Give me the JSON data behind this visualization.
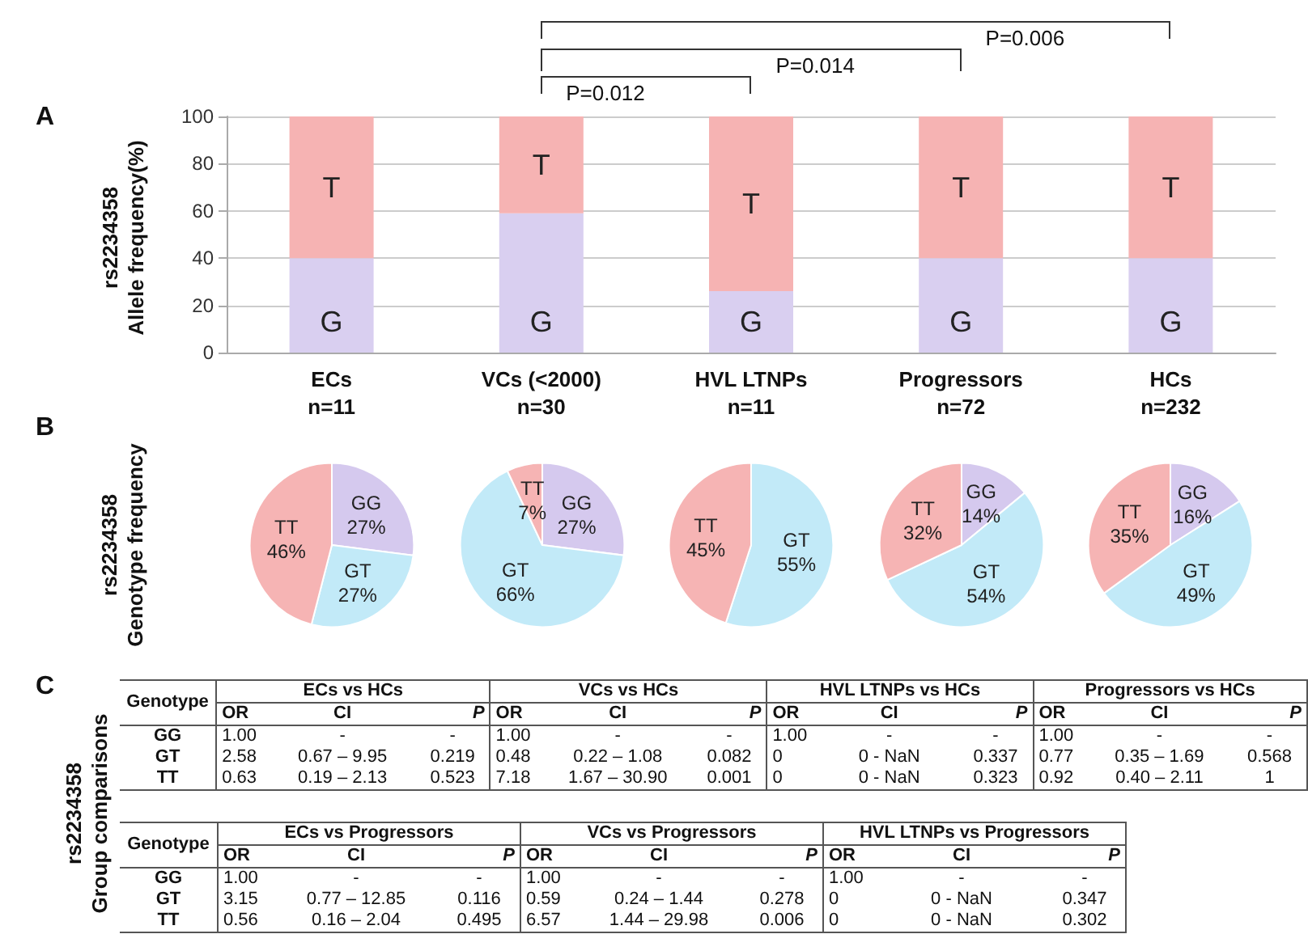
{
  "chart_data": [
    {
      "type": "bar",
      "stacked": true,
      "ylabel": "rs2234358\nAllele frequency(%)",
      "categories": [
        "ECs\nn=11",
        "VCs (<2000)\nn=30",
        "HVL LTNPs\nn=11",
        "Progressors\nn=72",
        "HCs\nn=232"
      ],
      "series": [
        {
          "name": "G",
          "color": "#d9cff0",
          "values": [
            40,
            59,
            26,
            40,
            40
          ]
        },
        {
          "name": "T",
          "color": "#f6b3b3",
          "values": [
            60,
            41,
            74,
            60,
            60
          ]
        }
      ],
      "ylim": [
        0,
        100
      ],
      "yticks": [
        0,
        20,
        40,
        60,
        80,
        100
      ],
      "grid": "y",
      "legend": false,
      "annotations": [
        "A",
        "P=0.012",
        "P=0.014",
        "P=0.006"
      ]
    },
    {
      "type": "pie",
      "ylabel": "rs2234358\nGenotype frequency",
      "annotations": [
        "B"
      ],
      "categories": [
        "GG",
        "GT",
        "TT"
      ],
      "values": [
        27,
        27,
        46
      ],
      "value_labels": [
        "27%",
        "27%",
        "46%"
      ],
      "colors": [
        "#d5c9ee",
        "#c2eaf8",
        "#f6b4b4"
      ]
    },
    {
      "type": "pie",
      "categories": [
        "GG",
        "GT",
        "TT"
      ],
      "values": [
        27,
        66,
        7
      ],
      "value_labels": [
        "27%",
        "66%",
        "7%"
      ],
      "colors": [
        "#d5c9ee",
        "#c2eaf8",
        "#f6b4b4"
      ]
    },
    {
      "type": "pie",
      "categories": [
        "GT",
        "TT"
      ],
      "values": [
        55,
        45
      ],
      "value_labels": [
        "55%",
        "45%"
      ],
      "colors": [
        "#c2eaf8",
        "#f6b4b4"
      ]
    },
    {
      "type": "pie",
      "categories": [
        "GG",
        "GT",
        "TT"
      ],
      "values": [
        14,
        54,
        32
      ],
      "value_labels": [
        "14%",
        "54%",
        "32%"
      ],
      "colors": [
        "#d5c9ee",
        "#c2eaf8",
        "#f6b4b4"
      ]
    },
    {
      "type": "pie",
      "categories": [
        "GG",
        "GT",
        "TT"
      ],
      "values": [
        16,
        49,
        35
      ],
      "value_labels": [
        "16%",
        "49%",
        "35%"
      ],
      "colors": [
        "#d5c9ee",
        "#c2eaf8",
        "#f6b4b4"
      ]
    },
    {
      "type": "other",
      "ylabel": "rs2234358\nGroup comparisons",
      "annotations": [
        "C",
        "Genotype",
        "OR",
        "CI",
        "P"
      ],
      "categories": [
        "ECs vs HCs",
        "VCs vs HCs",
        "HVL LTNPs vs HCs",
        "Progressors vs HCs"
      ],
      "y_categories": [
        "GG",
        "GT",
        "TT"
      ],
      "cell_labels": [
        [
          "1.00",
          "-",
          "-",
          "1.00",
          "-",
          "-",
          "1.00",
          "-",
          "-",
          "1.00",
          "-",
          "-"
        ],
        [
          "2.58",
          "0.67 – 9.95",
          "0.219",
          "0.48",
          "0.22 – 1.08",
          "0.082",
          "0",
          "0 - NaN",
          "0.337",
          "0.77",
          "0.35 – 1.69",
          "0.568"
        ],
        [
          "0.63",
          "0.19 – 2.13",
          "0.523",
          "7.18",
          "1.67 – 30.90",
          "0.001",
          "0",
          "0 - NaN",
          "0.323",
          "0.92",
          "0.40 – 2.11",
          "1"
        ]
      ]
    },
    {
      "type": "other",
      "annotations": [
        "Genotype",
        "OR",
        "CI",
        "P"
      ],
      "categories": [
        "ECs vs Progressors",
        "VCs vs Progressors",
        "HVL LTNPs vs Progressors"
      ],
      "y_categories": [
        "GG",
        "GT",
        "TT"
      ],
      "cell_labels": [
        [
          "1.00",
          "-",
          "-",
          "1.00",
          "-",
          "-",
          "1.00",
          "-",
          "-"
        ],
        [
          "3.15",
          "0.77 – 12.85",
          "0.116",
          "0.59",
          "0.24 – 1.44",
          "0.278",
          "0",
          "0 - NaN",
          "0.347"
        ],
        [
          "0.56",
          "0.16 – 2.04",
          "0.495",
          "6.57",
          "1.44 – 29.98",
          "0.006",
          "0",
          "0 - NaN",
          "0.302"
        ]
      ]
    }
  ]
}
